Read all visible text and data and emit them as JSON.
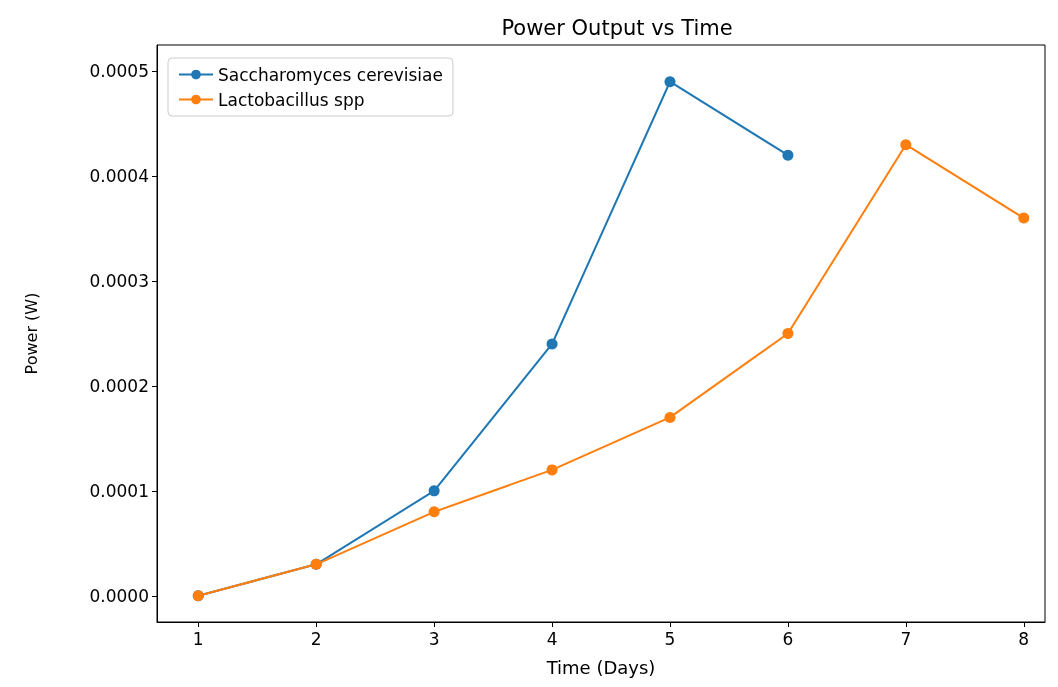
{
  "chart_data": {
    "type": "line",
    "title": "Power Output vs Time",
    "xlabel": "Time (Days)",
    "ylabel": "Power (W)",
    "x": [
      1,
      2,
      3,
      4,
      5,
      6,
      7,
      8
    ],
    "series": [
      {
        "name": "Saccharomyces cerevisiae",
        "color": "#1f77b4",
        "values": [
          0,
          3e-05,
          0.0001,
          0.00024,
          0.00049,
          0.00042,
          null,
          null
        ]
      },
      {
        "name": "Lactobacillus spp",
        "color": "#ff7f0e",
        "values": [
          0,
          3e-05,
          8e-05,
          0.00012,
          0.00017,
          0.00025,
          0.00043,
          0.00036
        ]
      }
    ],
    "xlim": [
      0.65,
      8.18
    ],
    "xticks": [
      1,
      2,
      3,
      4,
      5,
      6,
      7,
      8
    ],
    "ylim": [
      -2.5e-05,
      0.000525
    ],
    "yticks": [
      {
        "value": 0,
        "label": "0.0000"
      },
      {
        "value": 0.0001,
        "label": "0.0001"
      },
      {
        "value": 0.0002,
        "label": "0.0002"
      },
      {
        "value": 0.0003,
        "label": "0.0003"
      },
      {
        "value": 0.0004,
        "label": "0.0004"
      },
      {
        "value": 0.0005,
        "label": "0.0005"
      }
    ],
    "legend": "top left",
    "marker": "circle",
    "line_style": "solid",
    "grid": false
  }
}
